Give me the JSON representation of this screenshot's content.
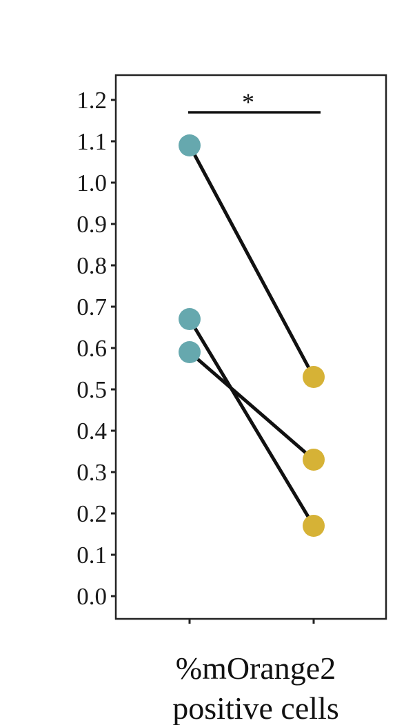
{
  "chart_data": {
    "type": "scatter",
    "paired": true,
    "categories": [
      "",
      ""
    ],
    "x_title_lines": [
      "%mOrange2",
      "positive cells"
    ],
    "ylim": [
      0,
      1.25
    ],
    "yticks": [
      0.0,
      0.1,
      0.2,
      0.3,
      0.4,
      0.5,
      0.6,
      0.7,
      0.8,
      0.9,
      1.0,
      1.1,
      1.2
    ],
    "ytick_labels": [
      "0.0",
      "0.1",
      "0.2",
      "0.3",
      "0.4",
      "0.5",
      "0.6",
      "0.7",
      "0.8",
      "0.9",
      "1.0",
      "1.1",
      "1.2"
    ],
    "pairs": [
      {
        "left": 1.09,
        "right": 0.53
      },
      {
        "left": 0.67,
        "right": 0.17
      },
      {
        "left": 0.59,
        "right": 0.33
      }
    ],
    "colors": {
      "left_point": "#66a8ae",
      "right_point": "#d6b236",
      "line": "#111111",
      "frame": "#222222"
    },
    "significance": {
      "label": "*",
      "y": 1.17
    },
    "grid": false,
    "legend": "none"
  }
}
